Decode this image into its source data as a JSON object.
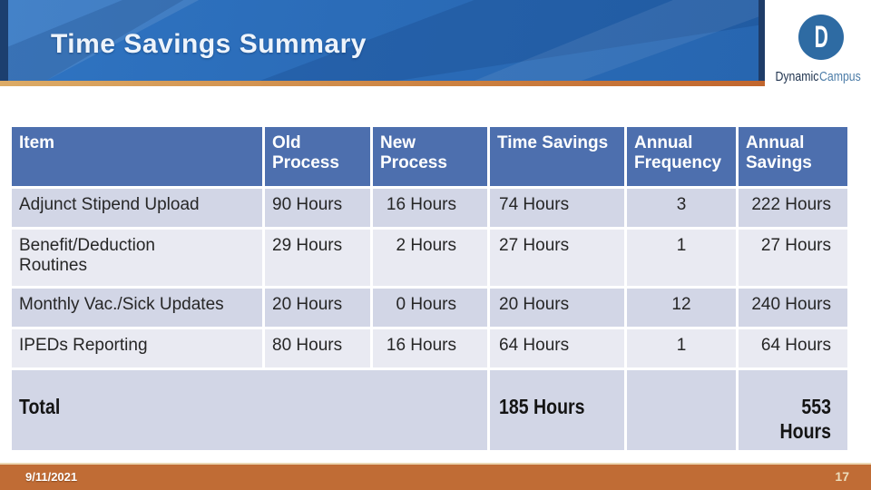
{
  "header": {
    "title": "Time Savings Summary"
  },
  "logo": {
    "monogram": "D",
    "name_primary": "Dynamic",
    "name_secondary": "Campus"
  },
  "table": {
    "columns": [
      {
        "label": "Item"
      },
      {
        "label": "Old\nProcess"
      },
      {
        "label": "New\nProcess"
      },
      {
        "label": "Time Savings"
      },
      {
        "label": "Annual\nFrequency"
      },
      {
        "label": "Annual\nSavings"
      }
    ],
    "rows": [
      {
        "item": "Adjunct Stipend Upload",
        "old_process": "90 Hours",
        "new_process": "16 Hours",
        "time_savings": "74 Hours",
        "annual_frequency": "3",
        "annual_savings": "222 Hours"
      },
      {
        "item": "Benefit/Deduction\nRoutines",
        "old_process": "29 Hours",
        "new_process": "2 Hours",
        "time_savings": "27 Hours",
        "annual_frequency": "1",
        "annual_savings": "27 Hours"
      },
      {
        "item": "Monthly Vac./Sick Updates",
        "old_process": "20 Hours",
        "new_process": "0 Hours",
        "time_savings": "20 Hours",
        "annual_frequency": "12",
        "annual_savings": "240 Hours"
      },
      {
        "item": "IPEDs Reporting",
        "old_process": "80 Hours",
        "new_process": "16 Hours",
        "time_savings": "64 Hours",
        "annual_frequency": "1",
        "annual_savings": "64 Hours"
      }
    ],
    "total_row": {
      "label": "Total",
      "time_savings": "185 Hours",
      "annual_frequency": "",
      "annual_savings": "553 Hours"
    }
  },
  "footer": {
    "date": "9/11/2021",
    "page_number": "17"
  },
  "colors": {
    "banner_blue": "#2b6cb8",
    "banner_navy_edge": "#1c3f6f",
    "accent_gold": "#dcab66",
    "accent_orange": "#c1662e",
    "table_header_bg": "#4d6fae",
    "row_dark_bg": "#d2d6e6",
    "row_light_bg": "#e9eaf2",
    "footer_bg": "#c06c35",
    "footer_trim": "#ecd8b4",
    "logo_circle_blue": "#2e6ba3",
    "logo_text_navy": "#20344f",
    "logo_text_blue": "#4d7da8"
  }
}
